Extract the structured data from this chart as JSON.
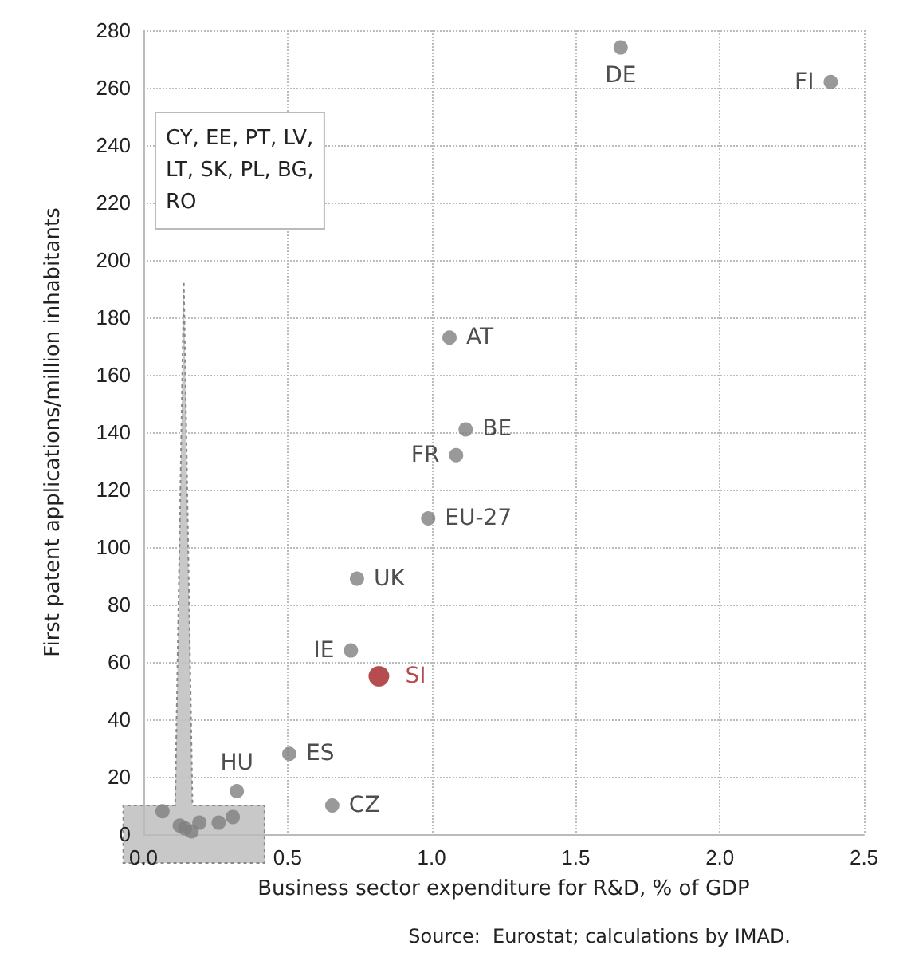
{
  "chart_data": {
    "type": "scatter",
    "xlabel": "Business sector expenditure for R&D, % of GDP",
    "ylabel": "First patent applications/million inhabitants",
    "series": [
      {
        "color": "#808080",
        "x": [
          1.656,
          2.385,
          1.062,
          1.118,
          1.085,
          0.988,
          0.741,
          0.72,
          0.506,
          0.324,
          0.655,
          0.066,
          0.126,
          0.144,
          0.167,
          0.194,
          0.261,
          0.31
        ],
        "values": [
          274,
          262,
          173,
          141,
          132,
          110,
          89,
          64,
          28,
          15,
          10,
          8,
          3,
          2,
          1,
          4,
          4,
          6
        ],
        "value_labels": [
          "DE",
          "FI",
          "AT",
          "BE",
          "FR",
          "EU-27",
          "UK",
          "IE",
          "ES",
          "HU",
          "CZ",
          null,
          null,
          null,
          null,
          null,
          null,
          null
        ]
      },
      {
        "color": "#a31f24",
        "x": [
          0.817
        ],
        "values": [
          55
        ],
        "value_labels": [
          "SI"
        ]
      }
    ],
    "xlim": [
      0,
      2.5
    ],
    "xticks": [
      {
        "value": 0,
        "label": "0.0"
      },
      {
        "value": 0.5,
        "label": "0.5"
      },
      {
        "value": 1,
        "label": "1.0"
      },
      {
        "value": 1.5,
        "label": "1.5"
      },
      {
        "value": 2,
        "label": "2.0"
      },
      {
        "value": 2.5,
        "label": "2.5"
      }
    ],
    "ylim": [
      0,
      280
    ],
    "yticks": [
      0,
      20,
      40,
      60,
      80,
      100,
      120,
      140,
      160,
      180,
      200,
      220,
      240,
      260,
      280
    ],
    "grid": true,
    "marker": "circle",
    "annotations": [
      "CY, EE, PT, LV,\nLT, SK, PL, BG,\nRO",
      "Source:  Eurostat; calculations by IMAD."
    ]
  }
}
